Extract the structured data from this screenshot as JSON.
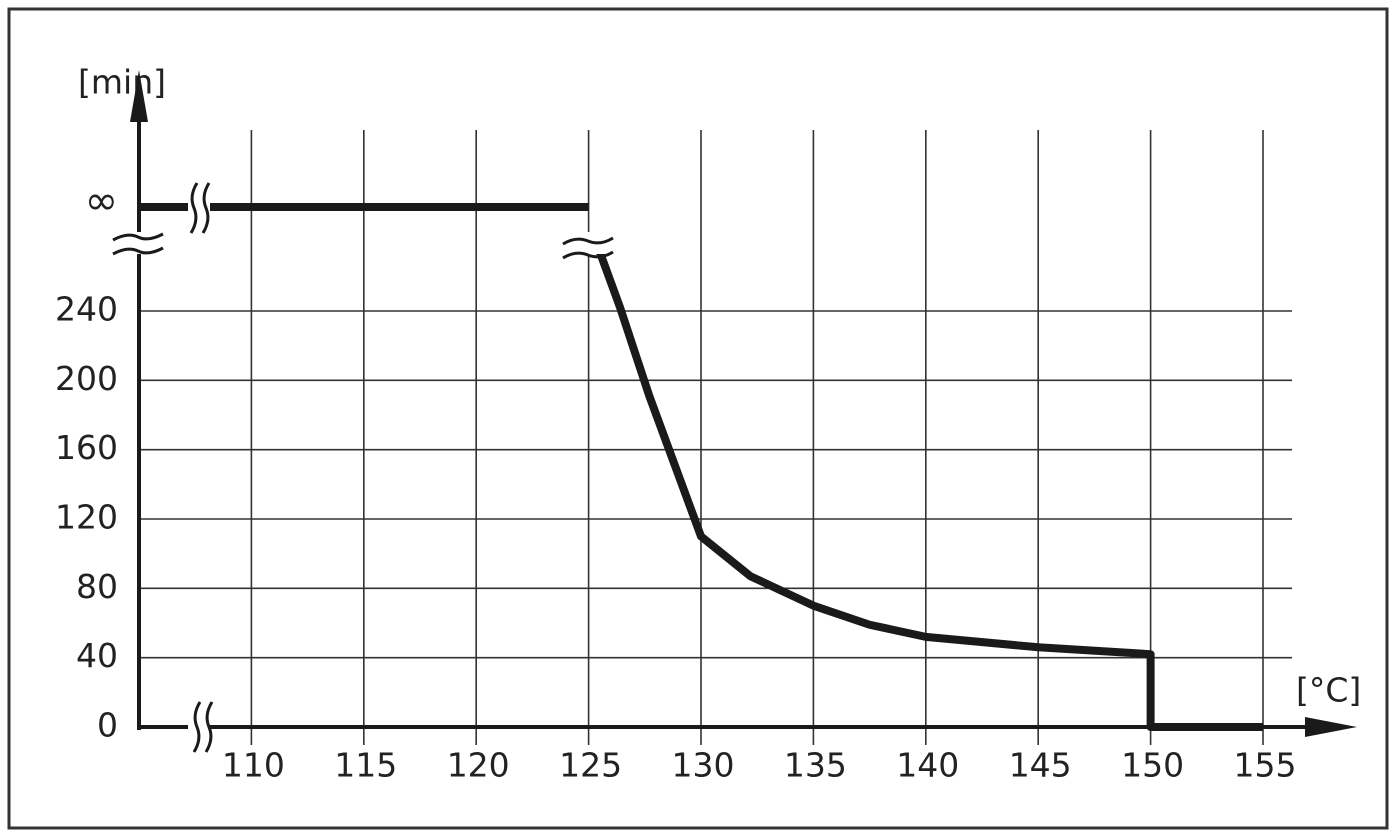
{
  "chart_data": {
    "type": "line",
    "y_label": "[min]",
    "x_label": "[°C]",
    "x": [
      105,
      125,
      125,
      125.5,
      126.4,
      127.7,
      130,
      132.2,
      135,
      137.5,
      140,
      145,
      150,
      150,
      155
    ],
    "series": [
      {
        "name": null,
        "color": "#1a1a1a",
        "values": [
          300,
          300,
          null,
          274,
          242,
          191,
          110,
          87,
          70,
          59,
          52,
          46,
          42,
          0,
          0
        ]
      }
    ],
    "xlim": [
      105,
      155
    ],
    "xticks": [
      110,
      115,
      120,
      125,
      130,
      135,
      140,
      145,
      150,
      155
    ],
    "ylim": [
      0,
      300
    ],
    "yticks": [
      0,
      40,
      80,
      120,
      160,
      200,
      240,
      {
        "value": 300,
        "label": "∞"
      }
    ],
    "grid": true
  }
}
